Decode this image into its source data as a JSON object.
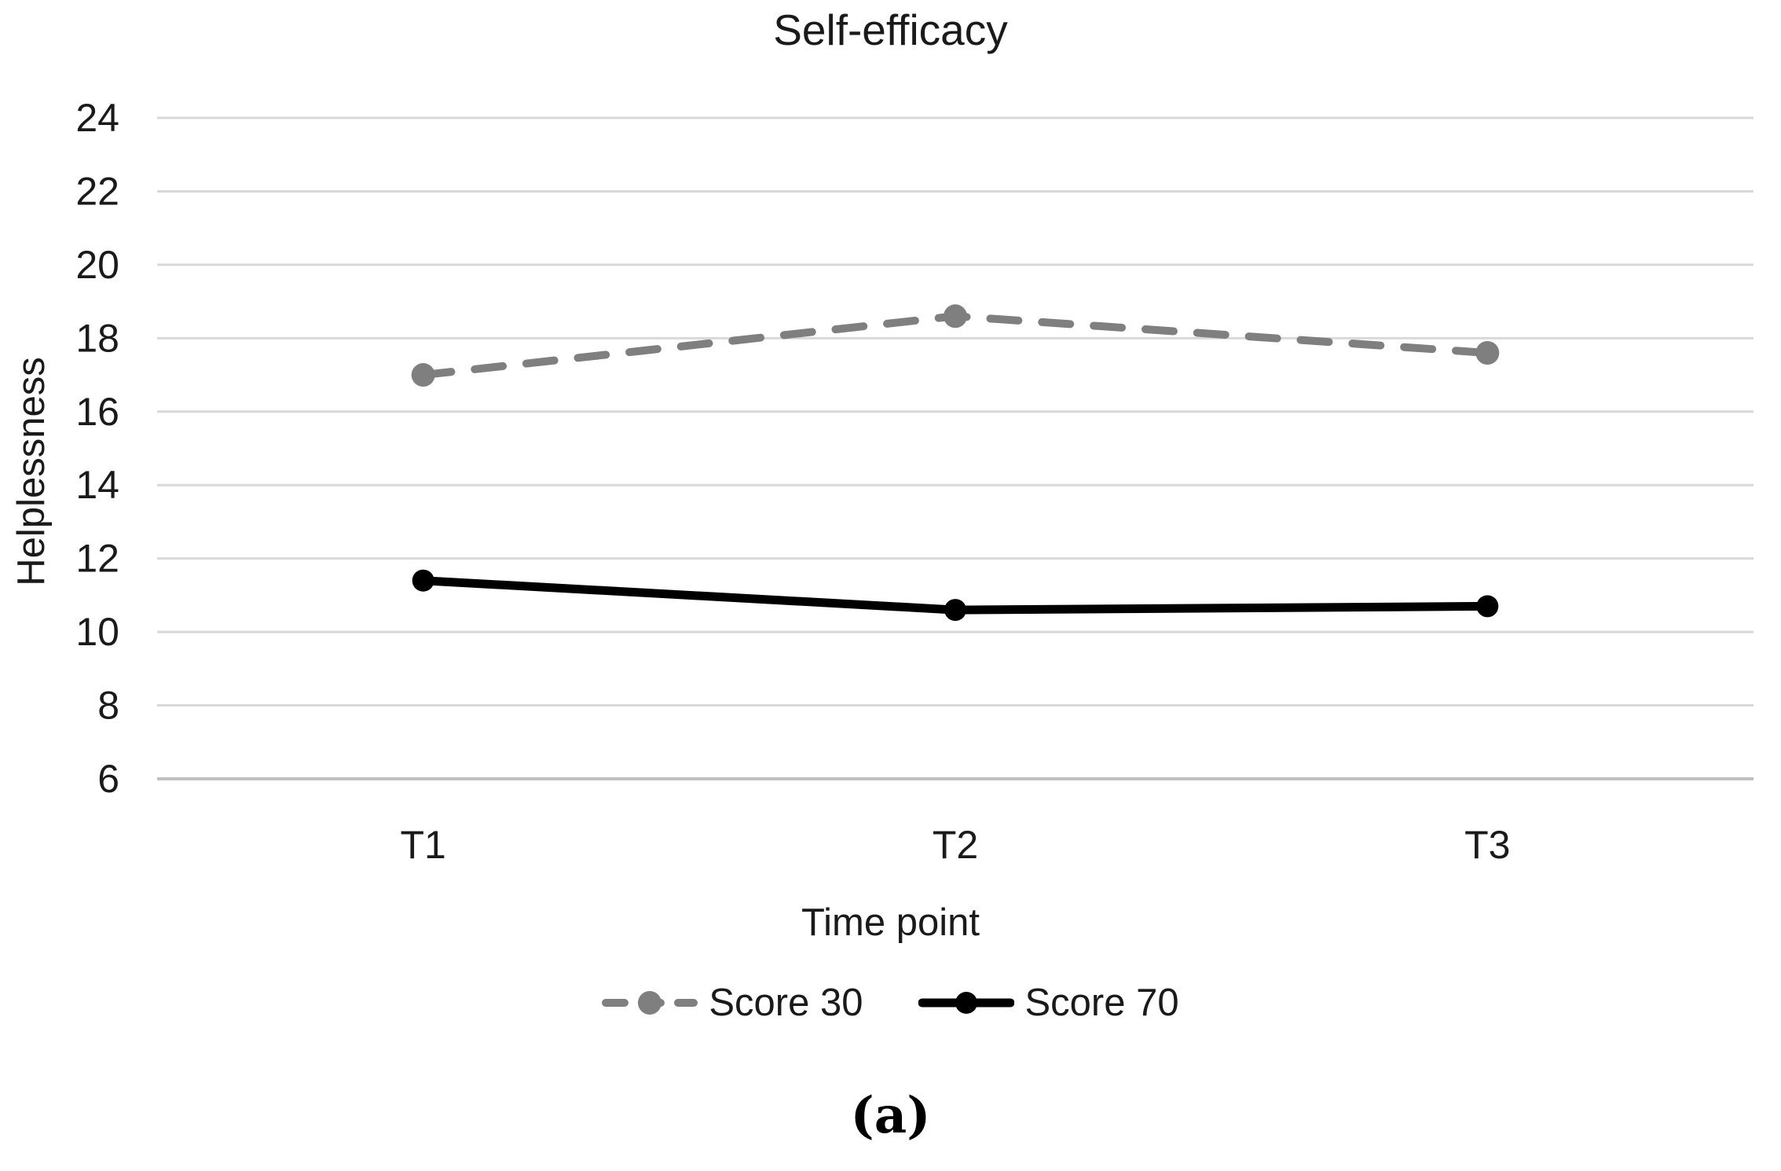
{
  "figure": {
    "caption": "(a)"
  },
  "chart_data": {
    "type": "line",
    "title": "Self-efficacy",
    "xlabel": "Time point",
    "ylabel": "Helplessness",
    "categories": [
      "T1",
      "T2",
      "T3"
    ],
    "series": [
      {
        "name": "Score 30",
        "values": [
          17.0,
          18.6,
          17.6
        ],
        "color": "#7F7F7F",
        "line_style": "dashed",
        "marker": "circle"
      },
      {
        "name": "Score 70",
        "values": [
          11.4,
          10.6,
          10.7
        ],
        "color": "#000000",
        "line_style": "solid",
        "marker": "circle"
      }
    ],
    "y_ticks": [
      24,
      22,
      20,
      18,
      16,
      14,
      12,
      10,
      8,
      6
    ],
    "ylim": [
      6,
      24
    ],
    "grid": "horizontal",
    "gridline_color": "#D9D9D9",
    "axis_line_color": "#C0C0C0",
    "text_color": "#1A1A1A",
    "legend_position": "bottom"
  }
}
